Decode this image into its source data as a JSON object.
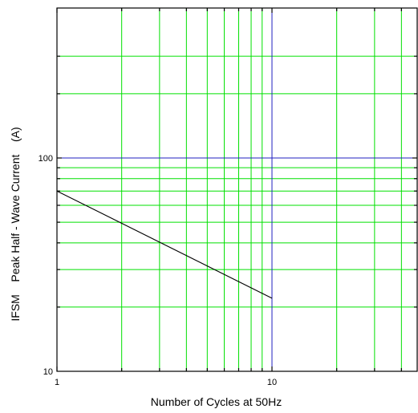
{
  "chart_data": {
    "type": "line",
    "xlabel": "Number of Cycles at 50Hz",
    "ylabel": "IFSM    Peak Half - Wave Current    (A)",
    "x_scale": "log",
    "y_scale": "log",
    "xlim": [
      1,
      50
    ],
    "ylim": [
      10,
      400
    ],
    "grid": true,
    "x_tick_labels": [
      {
        "value": 1,
        "label": "1"
      },
      {
        "value": 10,
        "label": "10"
      }
    ],
    "y_tick_labels": [
      {
        "value": 10,
        "label": "10"
      },
      {
        "value": 100,
        "label": "100"
      }
    ],
    "x_grid_minor": [
      2,
      3,
      4,
      5,
      6,
      7,
      8,
      9,
      20,
      30,
      40
    ],
    "x_grid_major": [
      10
    ],
    "y_grid_minor": [
      20,
      30,
      40,
      50,
      60,
      70,
      80,
      90,
      200,
      300
    ],
    "y_grid_major": [
      100
    ],
    "colors": {
      "grid_minor": "#00e000",
      "grid_major": "#2020c0",
      "series": "#000000",
      "axes": "#000000"
    },
    "series": [
      {
        "points": [
          {
            "x": 1,
            "y": 70
          },
          {
            "x": 10,
            "y": 22
          }
        ]
      }
    ]
  }
}
